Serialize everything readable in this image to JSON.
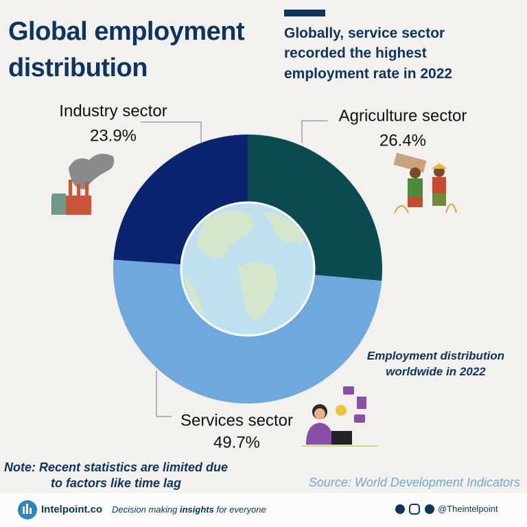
{
  "chart_data": {
    "type": "donut",
    "title": "Global employment distribution",
    "subtitle": "Globally, service sector recorded the highest employment rate in 2022",
    "annotation": "Employment distribution worldwide in 2022",
    "note": "Note: Recent statistics are limited due to factors like time lag",
    "source": "Source: World Development Indicators",
    "categories": [
      "Agriculture sector",
      "Services sector",
      "Industry sector"
    ],
    "values": [
      26.4,
      49.7,
      23.9
    ],
    "value_labels": [
      "26.4%",
      "49.7%",
      "23.9%"
    ],
    "colors": [
      "#0b4a4e",
      "#6fa8dc",
      "#0a2470"
    ]
  },
  "footer": {
    "brand": "Intelpoint.co",
    "tagline": [
      "Decision making ",
      "insights",
      " for everyone"
    ],
    "handle": "@Theintelpoint"
  }
}
